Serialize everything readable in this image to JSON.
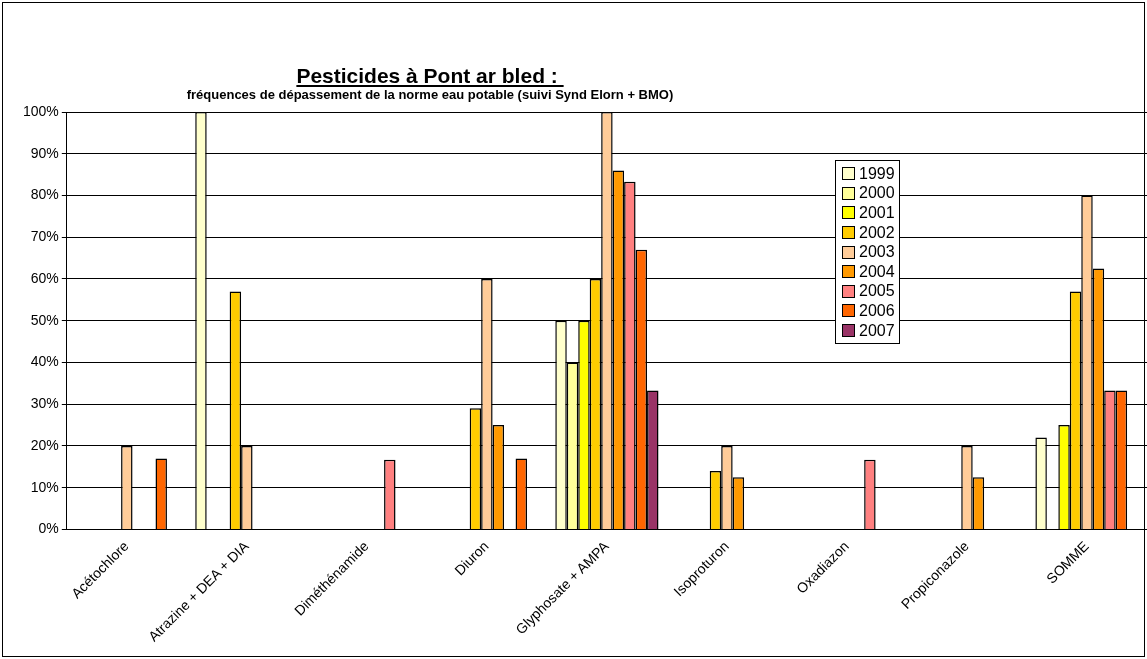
{
  "chart_data": {
    "type": "bar",
    "title": "Pesticides à Pont ar bled : ",
    "subtitle": "fréquences de dépassement de la norme eau potable (suivi Synd Elorn + BMO)",
    "categories": [
      "Acétochlore",
      "Atrazine + DEA + DIA",
      "Diméthénamide",
      "Diuron",
      "Glyphosate + AMPA",
      "Isoproturon",
      "Oxadiazon",
      "Propiconazole",
      "SOMME"
    ],
    "ylim": [
      0,
      100
    ],
    "yticks": [
      {
        "value": 0,
        "label": "0%"
      },
      {
        "value": 10,
        "label": "10%"
      },
      {
        "value": 20,
        "label": "20%"
      },
      {
        "value": 30,
        "label": "30%"
      },
      {
        "value": 40,
        "label": "40%"
      },
      {
        "value": 50,
        "label": "50%"
      },
      {
        "value": 60,
        "label": "60%"
      },
      {
        "value": 70,
        "label": "70%"
      },
      {
        "value": 80,
        "label": "80%"
      },
      {
        "value": 90,
        "label": "90%"
      },
      {
        "value": 100,
        "label": "100%"
      }
    ],
    "grid": "y",
    "legend": "top right",
    "series": [
      {
        "name": "1999",
        "color": "#ffffcc",
        "values": [
          null,
          100,
          null,
          null,
          50,
          null,
          null,
          null,
          22
        ]
      },
      {
        "name": "2000",
        "color": "#ffff99",
        "values": [
          null,
          null,
          null,
          null,
          40,
          null,
          null,
          null,
          null
        ]
      },
      {
        "name": "2001",
        "color": "#ffff00",
        "values": [
          null,
          null,
          null,
          null,
          50,
          null,
          null,
          null,
          25
        ]
      },
      {
        "name": "2002",
        "color": "#ffcc00",
        "values": [
          null,
          57,
          null,
          29,
          60,
          14,
          null,
          null,
          57
        ]
      },
      {
        "name": "2003",
        "color": "#ffcc99",
        "values": [
          20,
          20,
          null,
          60,
          100,
          20,
          null,
          20,
          80
        ]
      },
      {
        "name": "2004",
        "color": "#ff9900",
        "values": [
          null,
          null,
          null,
          25,
          86,
          12.5,
          null,
          12.5,
          62.5
        ]
      },
      {
        "name": "2005",
        "color": "#ff8080",
        "values": [
          null,
          null,
          16.7,
          null,
          83.3,
          null,
          16.7,
          null,
          33.3
        ]
      },
      {
        "name": "2006",
        "color": "#ff6600",
        "values": [
          17,
          null,
          null,
          17,
          67,
          null,
          null,
          null,
          33.3
        ]
      },
      {
        "name": "2007",
        "color": "#993366",
        "values": [
          null,
          null,
          null,
          null,
          33.3,
          null,
          null,
          null,
          null
        ]
      }
    ]
  }
}
